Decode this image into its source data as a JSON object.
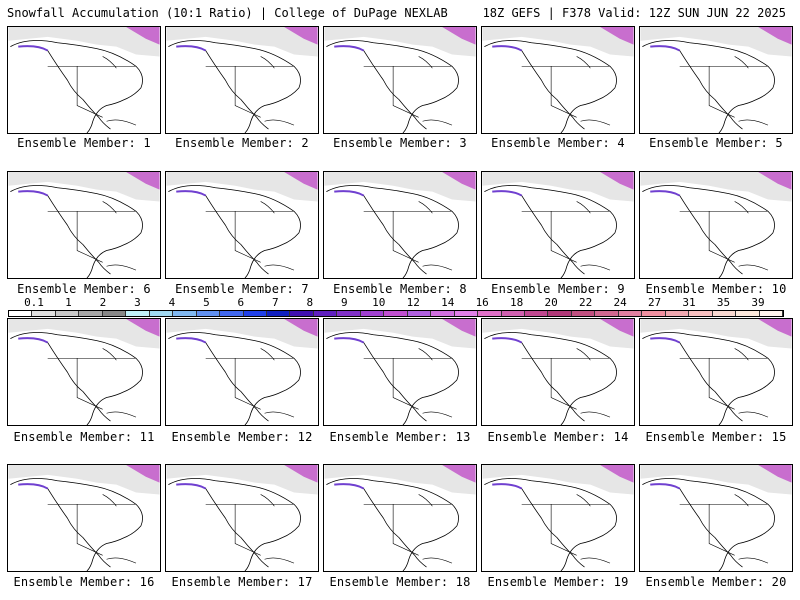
{
  "header": {
    "title": "Snowfall Accumulation (10:1 Ratio) | College of DuPage NEXLAB",
    "run": "18Z GEFS | F378 Valid: 12Z SUN JUN 22 2025"
  },
  "colorbar": {
    "labels": [
      "0.1",
      "1",
      "2",
      "3",
      "4",
      "5",
      "6",
      "7",
      "8",
      "9",
      "10",
      "12",
      "14",
      "16",
      "18",
      "20",
      "22",
      "24",
      "27",
      "31",
      "35",
      "39"
    ],
    "colors": [
      "#ffffff",
      "#e0e0e0",
      "#c8c8c8",
      "#a8a8a8",
      "#888888",
      "#c0f0f8",
      "#a0d8f0",
      "#80b8f0",
      "#6090f0",
      "#4068f0",
      "#2040e8",
      "#1020c0",
      "#4010b0",
      "#6020c0",
      "#8030c8",
      "#a040d0",
      "#c050d0",
      "#b060e0",
      "#d070e0",
      "#e080e8",
      "#e070c8",
      "#d060b0",
      "#c04890",
      "#b03878",
      "#c05080",
      "#d06890",
      "#e080a0",
      "#f090a0",
      "#f0a8b0",
      "#f8c0c0",
      "#f8d8d0",
      "#fce8dc",
      "#fff4ec"
    ]
  },
  "members": [
    "Ensemble Member: 1",
    "Ensemble Member: 2",
    "Ensemble Member: 3",
    "Ensemble Member: 4",
    "Ensemble Member: 5",
    "Ensemble Member: 6",
    "Ensemble Member: 7",
    "Ensemble Member: 8",
    "Ensemble Member: 9",
    "Ensemble Member: 10",
    "Ensemble Member: 11",
    "Ensemble Member: 12",
    "Ensemble Member: 13",
    "Ensemble Member: 14",
    "Ensemble Member: 15",
    "Ensemble Member: 16",
    "Ensemble Member: 17",
    "Ensemble Member: 18",
    "Ensemble Member: 19",
    "Ensemble Member: 20"
  ]
}
